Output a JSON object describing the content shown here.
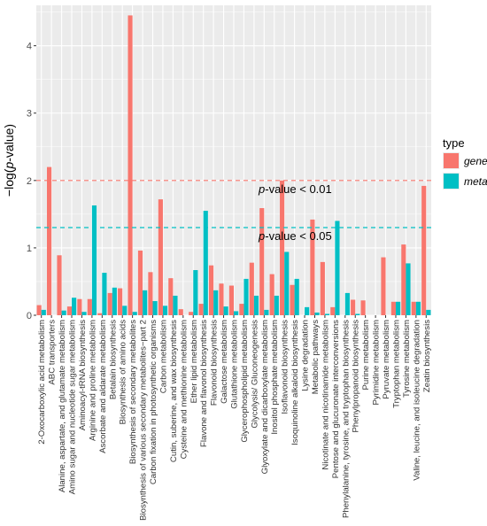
{
  "chart_data": {
    "type": "bar",
    "title": "",
    "xlabel": "",
    "ylabel_prefix": "−log(",
    "ylabel_italic": "p",
    "ylabel_suffix": "-value)",
    "ylim": [
      0,
      4.6
    ],
    "yticks": [
      0,
      1,
      2,
      3,
      4
    ],
    "ytick_labels": [
      "0",
      "1",
      "2",
      "3",
      "4"
    ],
    "grid": true,
    "legend": {
      "title": "type",
      "position": "right"
    },
    "categories": [
      "2-Oxocarboxylic acid metabolism",
      "ABC transporters",
      "Alanine,  aspartate, and glutamate metabolism",
      "Amino sugar and nucleotide sugar metabolism",
      "Aminoacyl-tRNA biosynthesis",
      "Arginine and proline metabolism",
      "Ascorbate and aldarate metabolism",
      "Betalain biosynthesis",
      "Biosynthesis of amino acids",
      "Biosynthesis of secondary metabolites",
      "Biosynthesis of various secondary metabolites−part 2",
      "Carbon fixation in photosynthetic organisms",
      "Carbon metabolism",
      "Cutin, suberine, and wax biosynthesis",
      "Cysteine and methionine metabolism",
      "Ether lipid metabolism",
      "Flavone and flavonol biosynthesis",
      "Flavonoid biosynthesis",
      "Galactose metabolism",
      "Glutathione metabolism",
      "Glycerophospholipid metabolism",
      "Glycolysis/ Gluconeogenesis",
      "Glyoxylate and dicarboxylate metabolism",
      "Inositol phosphate metabolism",
      "Isoflavonoid biosynthesis",
      "Isoquinoline alkaloid biosynthesis",
      "Lysine degradation",
      "Metabolic pathways",
      "Nicotinate and nicotinamide metabolism",
      "Pentose and glucuronate interconversions",
      "Phenylalanine, tyrosine, and tryptophan biosynthesis",
      "Phenylpropanoid biosynthesis",
      "Purine metabolism",
      "Pyrimidine metabolism",
      "Pyruvate metabolism",
      "Tryptophan metabolism",
      "Tyrosine metabolism",
      "Valine, leucine, and isoleucine degradation",
      "Zeatin biosynthesis"
    ],
    "series": [
      {
        "name": "gene",
        "color": "#F8766D",
        "values": [
          0.15,
          2.2,
          0.89,
          0.13,
          0.24,
          0.24,
          0.03,
          0.33,
          0.4,
          4.45,
          0.96,
          0.64,
          1.72,
          0.55,
          0.09,
          0.05,
          0.17,
          0.74,
          0.47,
          0.44,
          0.17,
          0.78,
          1.59,
          0.61,
          2.0,
          0.45,
          0.0,
          1.42,
          0.79,
          0.12,
          0.0,
          0.23,
          0.22,
          0.0,
          0.86,
          0.2,
          1.05,
          0.2,
          1.92
        ]
      },
      {
        "name": "meta",
        "color": "#00BFC4",
        "values": [
          0.08,
          0.0,
          0.07,
          0.26,
          0.05,
          1.63,
          0.63,
          0.41,
          0.14,
          0.05,
          0.37,
          0.21,
          0.14,
          0.29,
          0.0,
          0.67,
          1.55,
          0.37,
          0.13,
          0.06,
          0.54,
          0.29,
          0.08,
          0.29,
          0.94,
          0.54,
          0.12,
          0.04,
          0.02,
          1.4,
          0.33,
          0.02,
          0.0,
          0.0,
          0.0,
          0.2,
          0.77,
          0.2,
          0.08
        ]
      }
    ],
    "thresholds": [
      {
        "value": 2.0,
        "color": "#F8766D",
        "label_italic": "p",
        "label_rest": "-value < 0.01"
      },
      {
        "value": 1.301,
        "color": "#00BFC4",
        "label_italic": "p",
        "label_rest": "-value < 0.05"
      }
    ]
  }
}
